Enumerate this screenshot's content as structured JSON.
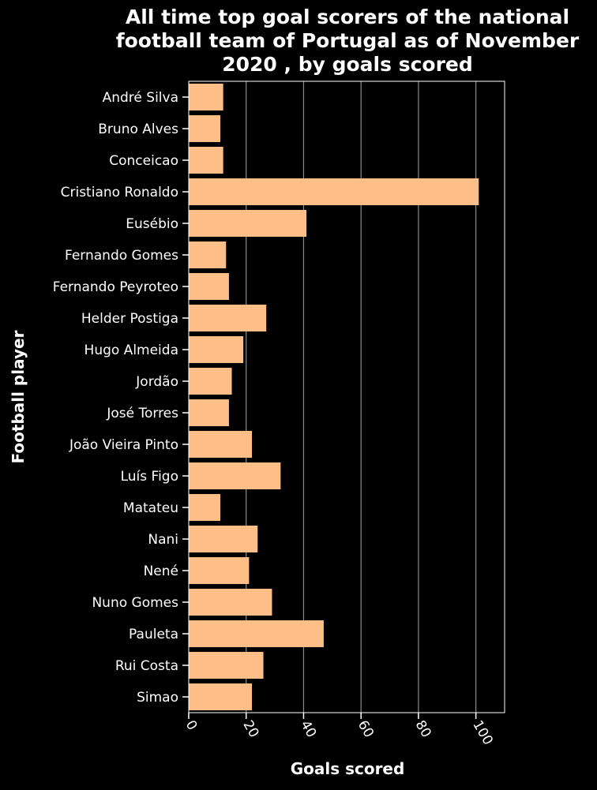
{
  "chart_data": {
    "type": "bar",
    "orientation": "horizontal",
    "title_lines": [
      "All time top goal scorers of the national",
      "football team of Portugal as of November",
      "2020 , by goals scored"
    ],
    "xlabel": "Goals scored",
    "ylabel": "Football player",
    "xlim": [
      0,
      110
    ],
    "xticks": [
      0,
      20,
      40,
      60,
      80,
      100
    ],
    "grid": "vertical",
    "categories": [
      "André Silva",
      "Bruno Alves",
      "Conceicao",
      "Cristiano Ronaldo",
      "Eusébio",
      "Fernando Gomes",
      "Fernando Peyroteo",
      "Helder Postiga",
      "Hugo Almeida",
      "Jordão",
      "José Torres",
      "João Vieira Pinto",
      "Luís Figo",
      "Matateu",
      "Nani",
      "Nené",
      "Nuno Gomes",
      "Pauleta",
      "Rui Costa",
      "Simao"
    ],
    "values": [
      12,
      11,
      12,
      101,
      41,
      13,
      14,
      27,
      19,
      15,
      14,
      22,
      32,
      11,
      24,
      21,
      29,
      47,
      26,
      22
    ]
  },
  "colors": {
    "background": "#000000",
    "bar": "#fdbf87",
    "text": "#ffffff",
    "grid": "#8c8c8c",
    "axis": "#ffffff"
  }
}
